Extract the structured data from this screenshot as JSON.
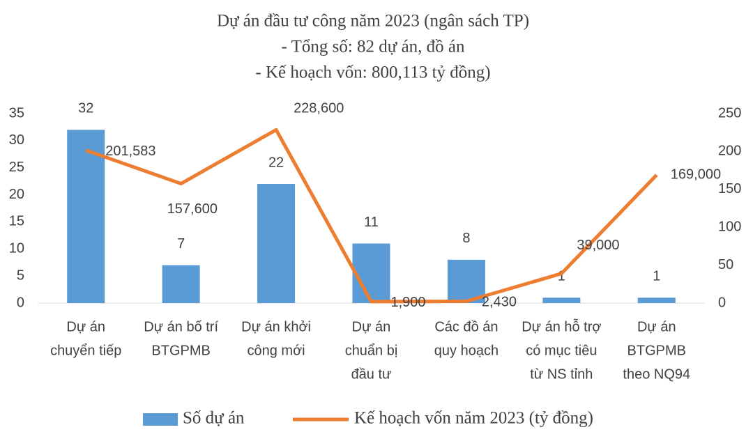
{
  "chart_data": {
    "type": "bar+line",
    "title": [
      "Dự án đầu tư công năm 2023 (ngân sách TP)",
      "- Tổng số: 82 dự án, đồ án",
      "- Kế hoạch vốn: 800,113  tỷ đồng)"
    ],
    "categories": [
      [
        "Dự án",
        "chuyển tiếp"
      ],
      [
        "Dự án bố trí",
        "BTGPMB"
      ],
      [
        "Dự án khởi",
        "công mới"
      ],
      [
        "Dự án",
        "chuẩn bị",
        "đầu tư"
      ],
      [
        "Các đồ án",
        "quy hoạch"
      ],
      [
        "Dự án hỗ trợ",
        "có mục tiêu",
        "từ NS tỉnh"
      ],
      [
        "Dự án",
        "BTGPMB",
        "theo NQ94"
      ]
    ],
    "series": [
      {
        "name": "Số dự án",
        "type": "bar",
        "color": "#5b9bd5",
        "axis": "y",
        "values": [
          32,
          7,
          22,
          11,
          8,
          1,
          1
        ]
      },
      {
        "name": "Kế hoạch vốn năm 2023  (tỷ đồng)",
        "type": "line",
        "color": "#ed7d31",
        "axis": "y2",
        "values": [
          201.583,
          157.6,
          228.6,
          1.9,
          2.43,
          39,
          169
        ],
        "value_labels": [
          "201,583",
          "157,600",
          "228,600",
          "1,900",
          "2,430",
          "39,000",
          "169,000"
        ]
      }
    ],
    "ylim": [
      0,
      35
    ],
    "yticks": [
      0,
      5,
      10,
      15,
      20,
      25,
      30,
      35
    ],
    "y2lim": [
      0,
      250
    ],
    "y2ticks": [
      0,
      50,
      100,
      150,
      200,
      250
    ],
    "legend": "bottom"
  }
}
